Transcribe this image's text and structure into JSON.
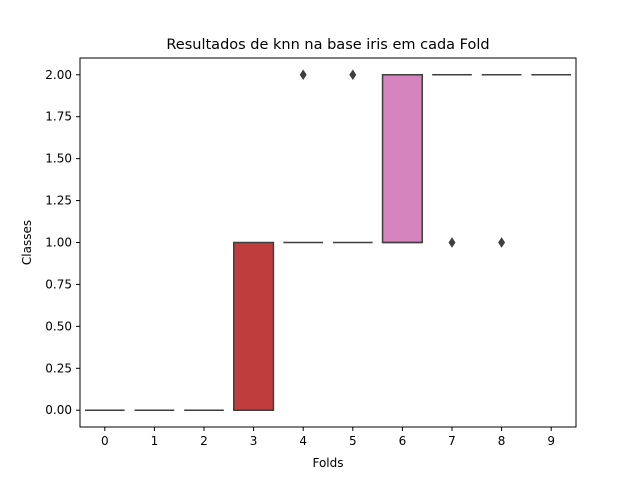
{
  "chart_data": {
    "type": "box",
    "title": "Resultados de knn na base iris em cada Fold",
    "xlabel": "Folds",
    "ylabel": "Classes",
    "categories": [
      "0",
      "1",
      "2",
      "3",
      "4",
      "5",
      "6",
      "7",
      "8",
      "9"
    ],
    "ylim": [
      -0.1,
      2.1
    ],
    "yticks": [
      0.0,
      0.25,
      0.5,
      0.75,
      1.0,
      1.25,
      1.5,
      1.75,
      2.0
    ],
    "ytick_labels": [
      "0.00",
      "0.25",
      "0.50",
      "0.75",
      "1.00",
      "1.25",
      "1.50",
      "1.75",
      "2.00"
    ],
    "grid": false,
    "boxes": [
      {
        "category": "0",
        "q1": 0,
        "median": 0,
        "q3": 0,
        "whisker_low": 0,
        "whisker_high": 0,
        "outliers": [],
        "color": "#3274a1"
      },
      {
        "category": "1",
        "q1": 0,
        "median": 0,
        "q3": 0,
        "whisker_low": 0,
        "whisker_high": 0,
        "outliers": [],
        "color": "#e1812c"
      },
      {
        "category": "2",
        "q1": 0,
        "median": 0,
        "q3": 0,
        "whisker_low": 0,
        "whisker_high": 0,
        "outliers": [],
        "color": "#3a923a"
      },
      {
        "category": "3",
        "q1": 0,
        "median": 0,
        "q3": 1,
        "whisker_low": 0,
        "whisker_high": 1,
        "outliers": [],
        "color": "#c03d3e"
      },
      {
        "category": "4",
        "q1": 1,
        "median": 1,
        "q3": 1,
        "whisker_low": 1,
        "whisker_high": 1,
        "outliers": [
          2
        ],
        "color": "#9372b2"
      },
      {
        "category": "5",
        "q1": 1,
        "median": 1,
        "q3": 1,
        "whisker_low": 1,
        "whisker_high": 1,
        "outliers": [
          2
        ],
        "color": "#845b53"
      },
      {
        "category": "6",
        "q1": 1,
        "median": 1,
        "q3": 2,
        "whisker_low": 1,
        "whisker_high": 2,
        "outliers": [],
        "color": "#d684bd"
      },
      {
        "category": "7",
        "q1": 2,
        "median": 2,
        "q3": 2,
        "whisker_low": 2,
        "whisker_high": 2,
        "outliers": [
          1
        ],
        "color": "#7f7f7f"
      },
      {
        "category": "8",
        "q1": 2,
        "median": 2,
        "q3": 2,
        "whisker_low": 2,
        "whisker_high": 2,
        "outliers": [
          1
        ],
        "color": "#a9aa35"
      },
      {
        "category": "9",
        "q1": 2,
        "median": 2,
        "q3": 2,
        "whisker_low": 2,
        "whisker_high": 2,
        "outliers": [],
        "color": "#2ea1b7"
      }
    ],
    "line_color": "#3f3f3f",
    "legend": "none"
  }
}
